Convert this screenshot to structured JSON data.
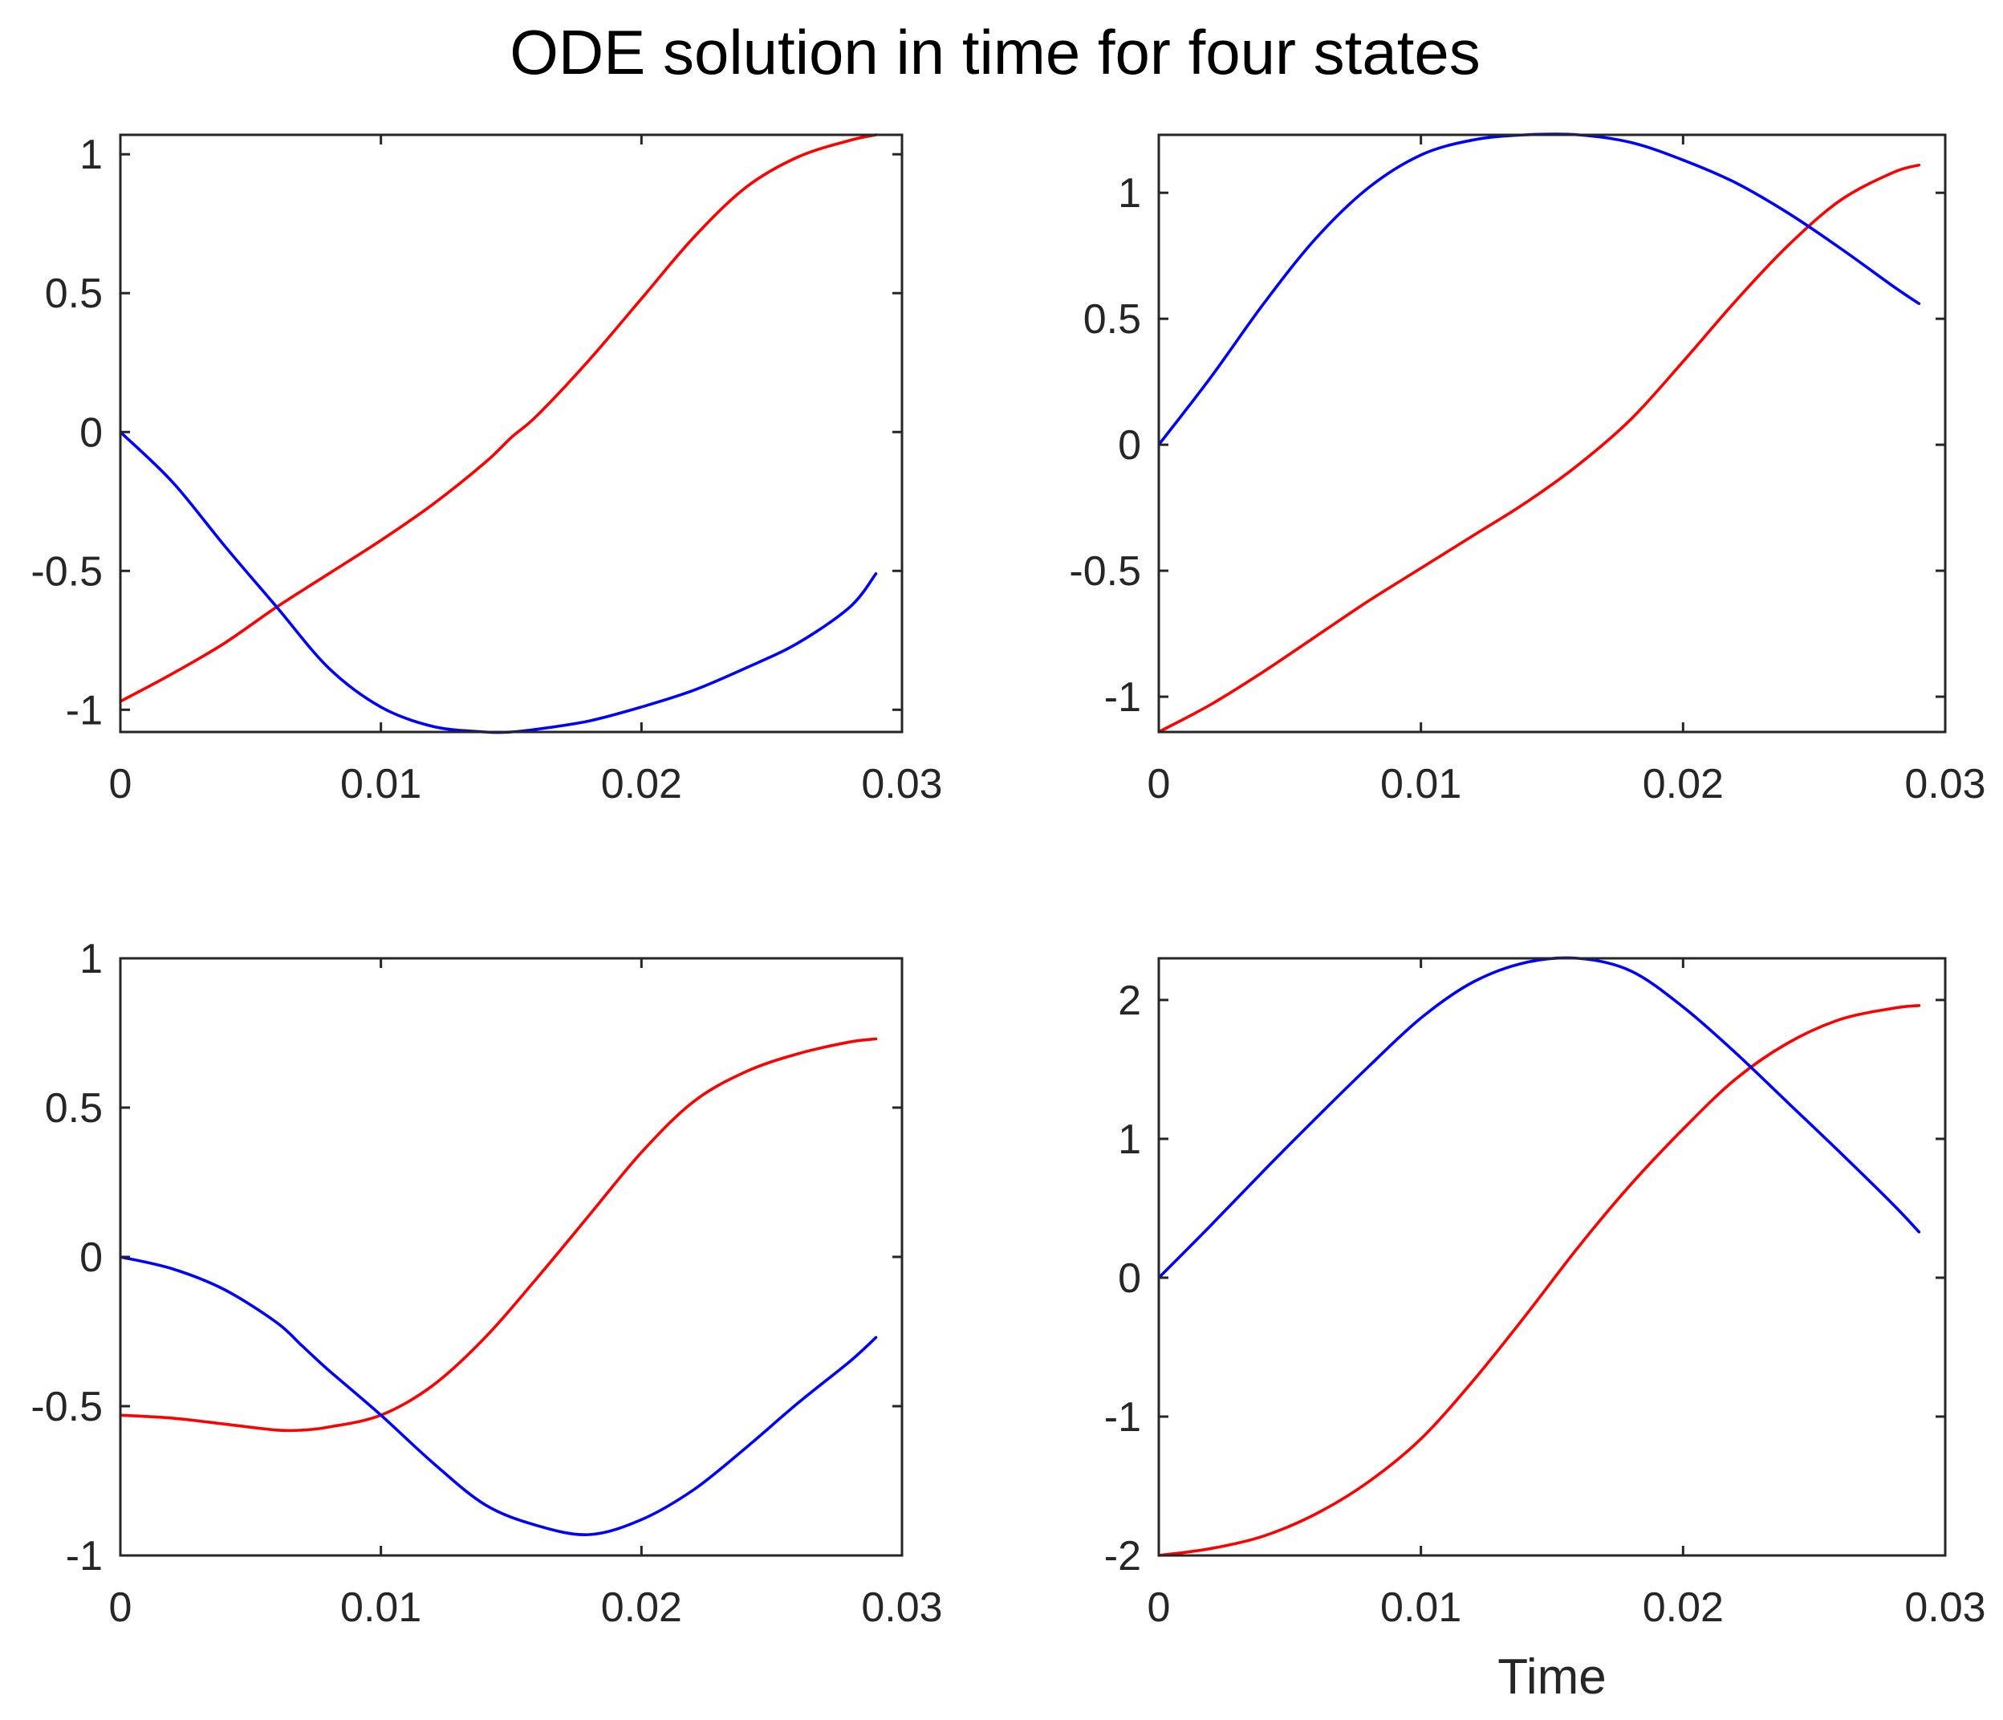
{
  "figure": {
    "title": "ODE solution in time for four states",
    "background": "#ffffff",
    "axis_color": "#262626"
  },
  "chart_data": [
    {
      "type": "line",
      "position": "top-left",
      "title": "",
      "xlabel": "",
      "ylabel": "",
      "xlim": [
        0,
        0.03
      ],
      "ylim": [
        -1.08,
        1.07
      ],
      "xticks": [
        0,
        0.01,
        0.02,
        0.03
      ],
      "xtick_labels": [
        "0",
        "0.01",
        "0.02",
        "0.03"
      ],
      "yticks": [
        -1,
        -0.5,
        0,
        0.5,
        1
      ],
      "ytick_labels": [
        "-1",
        "-0.5",
        "0",
        "0.5",
        "1"
      ],
      "grid": false,
      "x": [
        0,
        0.002,
        0.004,
        0.006,
        0.008,
        0.01,
        0.012,
        0.014,
        0.015,
        0.016,
        0.018,
        0.02,
        0.022,
        0.024,
        0.026,
        0.028,
        0.029
      ],
      "series": [
        {
          "name": "red",
          "color": "#ff0000",
          "values": [
            -0.97,
            -0.87,
            -0.76,
            -0.63,
            -0.51,
            -0.39,
            -0.26,
            -0.11,
            -0.02,
            0.06,
            0.26,
            0.48,
            0.7,
            0.88,
            0.99,
            1.05,
            1.07
          ]
        },
        {
          "name": "blue",
          "color": "#0000ff",
          "values": [
            0,
            -0.18,
            -0.41,
            -0.63,
            -0.85,
            -0.99,
            -1.06,
            -1.08,
            -1.08,
            -1.07,
            -1.04,
            -0.99,
            -0.93,
            -0.85,
            -0.76,
            -0.63,
            -0.51
          ]
        }
      ]
    },
    {
      "type": "line",
      "position": "top-right",
      "title": "",
      "xlabel": "",
      "ylabel": "",
      "xlim": [
        0,
        0.03
      ],
      "ylim": [
        -1.14,
        1.23
      ],
      "xticks": [
        0,
        0.01,
        0.02,
        0.03
      ],
      "xtick_labels": [
        "0",
        "0.01",
        "0.02",
        "0.03"
      ],
      "yticks": [
        -1,
        -0.5,
        0,
        0.5,
        1
      ],
      "ytick_labels": [
        "-1",
        "-0.5",
        "0",
        "0.5",
        "1"
      ],
      "grid": false,
      "x": [
        0,
        0.002,
        0.004,
        0.006,
        0.008,
        0.01,
        0.012,
        0.014,
        0.016,
        0.018,
        0.02,
        0.022,
        0.024,
        0.026,
        0.028,
        0.029
      ],
      "series": [
        {
          "name": "red",
          "color": "#ff0000",
          "values": [
            -1.14,
            -1.03,
            -0.9,
            -0.76,
            -0.62,
            -0.49,
            -0.36,
            -0.23,
            -0.08,
            0.1,
            0.33,
            0.57,
            0.79,
            0.97,
            1.08,
            1.11
          ],
          "end_marker": false
        },
        {
          "name": "blue",
          "color": "#0000ff",
          "values": [
            0,
            0.27,
            0.56,
            0.82,
            1.02,
            1.15,
            1.21,
            1.23,
            1.23,
            1.2,
            1.13,
            1.04,
            0.92,
            0.78,
            0.63,
            0.56
          ]
        }
      ]
    },
    {
      "type": "line",
      "position": "bottom-left",
      "title": "",
      "xlabel": "",
      "ylabel": "",
      "xlim": [
        0,
        0.03
      ],
      "ylim": [
        -1,
        1
      ],
      "xticks": [
        0,
        0.01,
        0.02,
        0.03
      ],
      "xtick_labels": [
        "0",
        "0.01",
        "0.02",
        "0.03"
      ],
      "yticks": [
        -1,
        -0.5,
        0,
        0.5,
        1
      ],
      "ytick_labels": [
        "-1",
        "-0.5",
        "0",
        "0.5",
        "1"
      ],
      "grid": false,
      "x": [
        0,
        0.002,
        0.004,
        0.006,
        0.007,
        0.008,
        0.01,
        0.012,
        0.014,
        0.016,
        0.018,
        0.02,
        0.022,
        0.024,
        0.026,
        0.028,
        0.029
      ],
      "series": [
        {
          "name": "red",
          "color": "#ff0000",
          "values": [
            -0.53,
            -0.54,
            -0.56,
            -0.58,
            -0.58,
            -0.57,
            -0.53,
            -0.43,
            -0.27,
            -0.07,
            0.14,
            0.35,
            0.52,
            0.62,
            0.68,
            0.72,
            0.73
          ]
        },
        {
          "name": "blue",
          "color": "#0000ff",
          "values": [
            0,
            -0.04,
            -0.11,
            -0.22,
            -0.3,
            -0.38,
            -0.53,
            -0.69,
            -0.83,
            -0.9,
            -0.93,
            -0.88,
            -0.78,
            -0.64,
            -0.49,
            -0.35,
            -0.27
          ]
        }
      ]
    },
    {
      "type": "line",
      "position": "bottom-right",
      "title": "",
      "xlabel": "Time",
      "ylabel": "",
      "xlim": [
        0,
        0.03
      ],
      "ylim": [
        -2,
        2.3
      ],
      "xticks": [
        0,
        0.01,
        0.02,
        0.03
      ],
      "xtick_labels": [
        "0",
        "0.01",
        "0.02",
        "0.03"
      ],
      "yticks": [
        -2,
        -1,
        0,
        1,
        2
      ],
      "ytick_labels": [
        "-2",
        "-1",
        "0",
        "1",
        "2"
      ],
      "grid": false,
      "x": [
        0,
        0.002,
        0.004,
        0.006,
        0.008,
        0.01,
        0.012,
        0.014,
        0.016,
        0.018,
        0.02,
        0.022,
        0.024,
        0.026,
        0.028,
        0.029
      ],
      "series": [
        {
          "name": "red",
          "color": "#ff0000",
          "values": [
            -2.0,
            -1.95,
            -1.86,
            -1.7,
            -1.47,
            -1.16,
            -0.74,
            -0.27,
            0.22,
            0.67,
            1.07,
            1.43,
            1.69,
            1.86,
            1.94,
            1.96
          ]
        },
        {
          "name": "blue",
          "color": "#0000ff",
          "values": [
            0,
            0.38,
            0.77,
            1.15,
            1.52,
            1.87,
            2.13,
            2.27,
            2.3,
            2.21,
            1.95,
            1.62,
            1.26,
            0.9,
            0.53,
            0.33
          ]
        }
      ]
    }
  ]
}
